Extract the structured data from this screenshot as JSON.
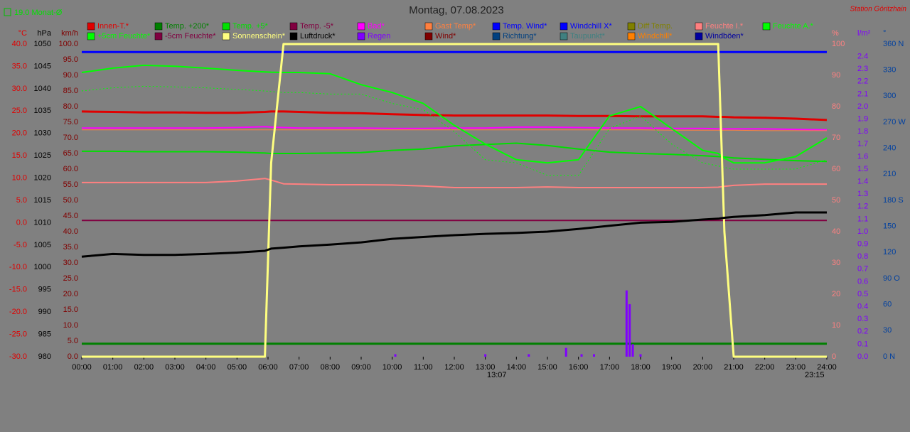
{
  "chart_data": {
    "type": "line",
    "title": "Montag, 07.08.2023",
    "station": "Station Göritzhain",
    "month_avg": "19.0 Monat-Ø",
    "annotations": [
      "13:07",
      "23:15"
    ],
    "xlim": [
      0,
      24
    ],
    "xticks": [
      {
        "value": 0,
        "label": "00:00"
      },
      {
        "value": 1,
        "label": "01:00"
      },
      {
        "value": 2,
        "label": "02:00"
      },
      {
        "value": 3,
        "label": "03:00"
      },
      {
        "value": 4,
        "label": "04:00"
      },
      {
        "value": 5,
        "label": "05:00"
      },
      {
        "value": 6,
        "label": "06:00"
      },
      {
        "value": 7,
        "label": "07:00"
      },
      {
        "value": 8,
        "label": "08:00"
      },
      {
        "value": 9,
        "label": "09:00"
      },
      {
        "value": 10,
        "label": "10:00"
      },
      {
        "value": 11,
        "label": "11:00"
      },
      {
        "value": 12,
        "label": "12:00"
      },
      {
        "value": 13,
        "label": "13:00"
      },
      {
        "value": 14,
        "label": "14:00"
      },
      {
        "value": 15,
        "label": "15:00"
      },
      {
        "value": 16,
        "label": "16:00"
      },
      {
        "value": 17,
        "label": "17:00"
      },
      {
        "value": 18,
        "label": "18:00"
      },
      {
        "value": 19,
        "label": "19:00"
      },
      {
        "value": 20,
        "label": "20:00"
      },
      {
        "value": 21,
        "label": "21:00"
      },
      {
        "value": 22,
        "label": "22:00"
      },
      {
        "value": 23,
        "label": "23:00"
      },
      {
        "value": 24,
        "label": "24:00"
      }
    ],
    "axes": {
      "temp": {
        "unit": "°C",
        "color": "#e00000",
        "side": "left",
        "ylim": [
          -30,
          40
        ],
        "yticks": [
          {
            "value": 40,
            "label": "40.0"
          },
          {
            "value": 35,
            "label": "35.0"
          },
          {
            "value": 30,
            "label": "30.0"
          },
          {
            "value": 25,
            "label": "25.0"
          },
          {
            "value": 20,
            "label": "20.0"
          },
          {
            "value": 15,
            "label": "15.0"
          },
          {
            "value": 10,
            "label": "10.0"
          },
          {
            "value": 5,
            "label": "5.0"
          },
          {
            "value": 0,
            "label": "0.0"
          },
          {
            "value": -5,
            "label": "-5.0"
          },
          {
            "value": -10,
            "label": "-10.0"
          },
          {
            "value": -15,
            "label": "-15.0"
          },
          {
            "value": -20,
            "label": "-20.0"
          },
          {
            "value": -25,
            "label": "-25.0"
          },
          {
            "value": -30,
            "label": "-30.0"
          }
        ]
      },
      "pressure": {
        "unit": "hPa",
        "color": "#000000",
        "side": "left",
        "ylim": [
          980,
          1050
        ],
        "yticks": [
          1050,
          1045,
          1040,
          1035,
          1030,
          1025,
          1020,
          1015,
          1010,
          1005,
          1000,
          995,
          990,
          985,
          980
        ]
      },
      "wind": {
        "unit": "km/h",
        "color": "#800000",
        "side": "left",
        "ylim": [
          0,
          100
        ],
        "yticks": [
          {
            "value": 100,
            "label": "100.0"
          },
          {
            "value": 95,
            "label": "95.0"
          },
          {
            "value": 90,
            "label": "90.0"
          },
          {
            "value": 85,
            "label": "85.0"
          },
          {
            "value": 80,
            "label": "80.0"
          },
          {
            "value": 75,
            "label": "75.0"
          },
          {
            "value": 70,
            "label": "70.0"
          },
          {
            "value": 65,
            "label": "65.0"
          },
          {
            "value": 60,
            "label": "60.0"
          },
          {
            "value": 55,
            "label": "55.0"
          },
          {
            "value": 50,
            "label": "50.0"
          },
          {
            "value": 45,
            "label": "45.0"
          },
          {
            "value": 40,
            "label": "40.0"
          },
          {
            "value": 35,
            "label": "35.0"
          },
          {
            "value": 30,
            "label": "30.0"
          },
          {
            "value": 25,
            "label": "25.0"
          },
          {
            "value": 20,
            "label": "20.0"
          },
          {
            "value": 15,
            "label": "15.0"
          },
          {
            "value": 10,
            "label": "10.0"
          },
          {
            "value": 5,
            "label": "5.0"
          },
          {
            "value": 0,
            "label": "0.0"
          }
        ]
      },
      "humidity": {
        "unit": "%",
        "color": "#ff8080",
        "side": "right",
        "ylim": [
          0,
          100
        ],
        "yticks": [
          100,
          90,
          80,
          70,
          60,
          50,
          40,
          30,
          20,
          10,
          0
        ]
      },
      "rain": {
        "unit": "l/m²",
        "color": "#8000ff",
        "side": "right",
        "ylim": [
          0,
          2.5
        ],
        "yticks": [
          {
            "value": 2.4,
            "label": "2.4"
          },
          {
            "value": 2.3,
            "label": "2.3"
          },
          {
            "value": 2.2,
            "label": "2.2"
          },
          {
            "value": 2.1,
            "label": "2.1"
          },
          {
            "value": 2,
            "label": "2.0"
          },
          {
            "value": 1.9,
            "label": "1.9"
          },
          {
            "value": 1.8,
            "label": "1.8"
          },
          {
            "value": 1.7,
            "label": "1.7"
          },
          {
            "value": 1.6,
            "label": "1.6"
          },
          {
            "value": 1.5,
            "label": "1.5"
          },
          {
            "value": 1.4,
            "label": "1.4"
          },
          {
            "value": 1.3,
            "label": "1.3"
          },
          {
            "value": 1.2,
            "label": "1.2"
          },
          {
            "value": 1.1,
            "label": "1.1"
          },
          {
            "value": 1,
            "label": "1.0"
          },
          {
            "value": 0.9,
            "label": "0.9"
          },
          {
            "value": 0.8,
            "label": "0.8"
          },
          {
            "value": 0.7,
            "label": "0.7"
          },
          {
            "value": 0.6,
            "label": "0.6"
          },
          {
            "value": 0.5,
            "label": "0.5"
          },
          {
            "value": 0.4,
            "label": "0.4"
          },
          {
            "value": 0.3,
            "label": "0.3"
          },
          {
            "value": 0.2,
            "label": "0.2"
          },
          {
            "value": 0.1,
            "label": "0.1"
          },
          {
            "value": 0,
            "label": "0.0"
          }
        ]
      },
      "direction": {
        "unit": "°",
        "color": "#0040a0",
        "side": "right",
        "ylim": [
          0,
          360
        ],
        "yticks": [
          {
            "value": 360,
            "label": "360 N"
          },
          330,
          300,
          {
            "value": 270,
            "label": "270 W"
          },
          240,
          210,
          {
            "value": 180,
            "label": "180 S"
          },
          150,
          120,
          {
            "value": 90,
            "label": "90 O"
          },
          60,
          30,
          {
            "value": 0,
            "label": "0  N"
          }
        ]
      }
    },
    "x": [
      0,
      1,
      2,
      3,
      4,
      5,
      5.9,
      6.1,
      6.5,
      7,
      8,
      9,
      10,
      11,
      12,
      13,
      14,
      15,
      16,
      17,
      18,
      19,
      20,
      20.5,
      20.7,
      21,
      22,
      23,
      24
    ],
    "series": [
      {
        "name": "Innen-T.*",
        "color": "#e00000",
        "axis": "temp",
        "width": 3,
        "values": [
          24.9,
          24.8,
          24.7,
          24.7,
          24.6,
          24.6,
          24.8,
          24.9,
          24.9,
          24.8,
          24.6,
          24.5,
          24.3,
          24.1,
          24.0,
          24.0,
          24.0,
          24.0,
          23.9,
          23.9,
          23.8,
          23.8,
          23.8,
          23.7,
          23.7,
          23.6,
          23.5,
          23.3,
          23.0
        ]
      },
      {
        "name": "Temp. +200*",
        "color": "#008000",
        "axis": "temp",
        "width": 3,
        "values": [
          -27.1,
          -27.1,
          -27.1,
          -27.1,
          -27.1,
          -27.1,
          -27.1,
          -27.1,
          -27.1,
          -27.1,
          -27.1,
          -27.1,
          -27.1,
          -27.1,
          -27.1,
          -27.1,
          -27.1,
          -27.1,
          -27.1,
          -27.1,
          -27.1,
          -27.1,
          -27.1,
          -27.1,
          -27.1,
          -27.1,
          -27.1,
          -27.1,
          -27.1
        ]
      },
      {
        "name": "Temp. +5*",
        "color": "#00e000",
        "axis": "temp",
        "width": 2,
        "values": [
          16,
          16,
          15.9,
          15.9,
          15.9,
          15.8,
          15.6,
          15.5,
          15.5,
          15.5,
          15.6,
          15.7,
          16.2,
          16.5,
          17.2,
          17.5,
          17.8,
          17.3,
          16.5,
          15.8,
          15.5,
          15.3,
          15.0,
          14.8,
          14.7,
          14.5,
          14.2,
          13.9,
          13.7
        ]
      },
      {
        "name": "Temp. -5*",
        "color": "#800040",
        "axis": "temp",
        "width": 2,
        "values": [
          0.5,
          0.5,
          0.5,
          0.5,
          0.5,
          0.5,
          0.5,
          0.5,
          0.5,
          0.5,
          0.5,
          0.5,
          0.5,
          0.5,
          0.5,
          0.5,
          0.5,
          0.5,
          0.5,
          0.5,
          0.5,
          0.5,
          0.5,
          0.5,
          0.5,
          0.5,
          0.5,
          0.5,
          0.5
        ]
      },
      {
        "name": "Bad*",
        "color": "#ff00ff",
        "axis": "temp",
        "width": 2,
        "values": [
          21.2,
          21.2,
          21.2,
          21.2,
          21.2,
          21.3,
          21.5,
          21.4,
          21.3,
          21.2,
          21.2,
          21.2,
          21.1,
          21.1,
          21.2,
          21.2,
          21.4,
          21.4,
          21.3,
          21.2,
          21.2,
          21.1,
          21.1,
          21.0,
          21.0,
          21.0,
          21.0,
          20.9,
          20.8
        ]
      },
      {
        "name": "Gast Temp*",
        "color": "#ff8040",
        "axis": "temp",
        "width": 1,
        "values": [
          20.8,
          20.8,
          20.8,
          20.8,
          20.8,
          20.8,
          20.8,
          20.8,
          20.8,
          20.8,
          20.8,
          20.8,
          20.8,
          20.8,
          20.8,
          20.8,
          20.8,
          20.8,
          20.8,
          20.8,
          20.8,
          20.7,
          20.7,
          20.7,
          20.7,
          20.7,
          20.6,
          20.6,
          20.6
        ]
      },
      {
        "name": "Temp. Wind*",
        "color": "#0000ff"
      },
      {
        "name": "Windchill X*",
        "color": "#0000ff",
        "axis": "temp",
        "width": 3,
        "values": [
          38.2,
          38.2,
          38.2,
          38.2,
          38.2,
          38.2,
          38.2,
          38.2,
          38.2,
          38.2,
          38.2,
          38.2,
          38.2,
          38.2,
          38.2,
          38.2,
          38.2,
          38.2,
          38.2,
          38.2,
          38.2,
          38.2,
          38.2,
          38.2,
          38.2,
          38.2,
          38.2,
          38.2,
          38.2
        ]
      },
      {
        "name": "Diff Temp.",
        "color": "#808000"
      },
      {
        "name": "Feuchte I.*",
        "color": "#ff8080",
        "axis": "humidity",
        "width": 2,
        "values": [
          55.7,
          55.7,
          55.7,
          55.7,
          55.7,
          56.2,
          57,
          56.5,
          55.3,
          55.2,
          55,
          55,
          54.9,
          54.6,
          54.1,
          54.1,
          54.1,
          54.3,
          54.1,
          54.1,
          54.1,
          54.1,
          54.1,
          54.2,
          54.5,
          54.8,
          55.2,
          55.2,
          55.2
        ]
      },
      {
        "name": "Feuchte A.*",
        "color": "#00ff00",
        "axis": "humidity",
        "width": 2,
        "values": [
          90.9,
          92.3,
          93.2,
          92.9,
          92.3,
          91.6,
          91.1,
          91,
          90.9,
          90.9,
          90.5,
          87,
          84.5,
          81,
          74,
          68,
          63,
          62,
          63,
          77,
          80,
          73,
          66,
          65,
          63.5,
          62,
          62,
          64,
          70
        ]
      },
      {
        "name": "+5cm Feuchte*",
        "color": "#00ff00",
        "axis": "humidity",
        "width": 1,
        "dash": true,
        "values": [
          85,
          86,
          86.5,
          86.3,
          86,
          85.5,
          85,
          84.8,
          84.5,
          84.5,
          84,
          84,
          81,
          79,
          72,
          63,
          62,
          58,
          58,
          73,
          77,
          68,
          62,
          61,
          60.5,
          60,
          60,
          60,
          63
        ]
      },
      {
        "name": "-5cm Feuchte*",
        "color": "#800040"
      },
      {
        "name": "Sonnenschein*",
        "color": "#ffff80",
        "axis": "humidity",
        "width": 3,
        "values": [
          0,
          0,
          0,
          0,
          0,
          0,
          0,
          62,
          100,
          100,
          100,
          100,
          100,
          100,
          100,
          100,
          100,
          100,
          100,
          100,
          100,
          100,
          100,
          100,
          40,
          0,
          0,
          0,
          0
        ]
      },
      {
        "name": "Luftdruck*",
        "color": "#000000",
        "axis": "pressure",
        "width": 3,
        "values": [
          1002.4,
          1003,
          1002.8,
          1002.8,
          1003,
          1003.3,
          1003.7,
          1004.2,
          1004.4,
          1004.7,
          1005.1,
          1005.6,
          1006.4,
          1006.8,
          1007.2,
          1007.5,
          1007.7,
          1008,
          1008.6,
          1009.3,
          1010,
          1010.2,
          1010.7,
          1010.9,
          1011.1,
          1011.3,
          1011.7,
          1012.3,
          1012.3
        ]
      },
      {
        "name": "Regen",
        "color": "#8000ff",
        "axis": "rain",
        "bars": true,
        "x": [
          10.1,
          13.0,
          14.4,
          15.6,
          16.1,
          16.5,
          17.55,
          17.65,
          17.75,
          18.0
        ],
        "values": [
          0.02,
          0.02,
          0.02,
          0.07,
          0.02,
          0.02,
          0.53,
          0.42,
          0.1,
          0.02
        ]
      },
      {
        "name": "Wind*",
        "color": "#800000"
      },
      {
        "name": "Richtung*",
        "color": "#004080"
      },
      {
        "name": "Taupunkt*",
        "color": "#408080"
      },
      {
        "name": "Windchill*",
        "color": "#ff8000"
      },
      {
        "name": "Windböen*",
        "color": "#0000a0"
      }
    ]
  }
}
